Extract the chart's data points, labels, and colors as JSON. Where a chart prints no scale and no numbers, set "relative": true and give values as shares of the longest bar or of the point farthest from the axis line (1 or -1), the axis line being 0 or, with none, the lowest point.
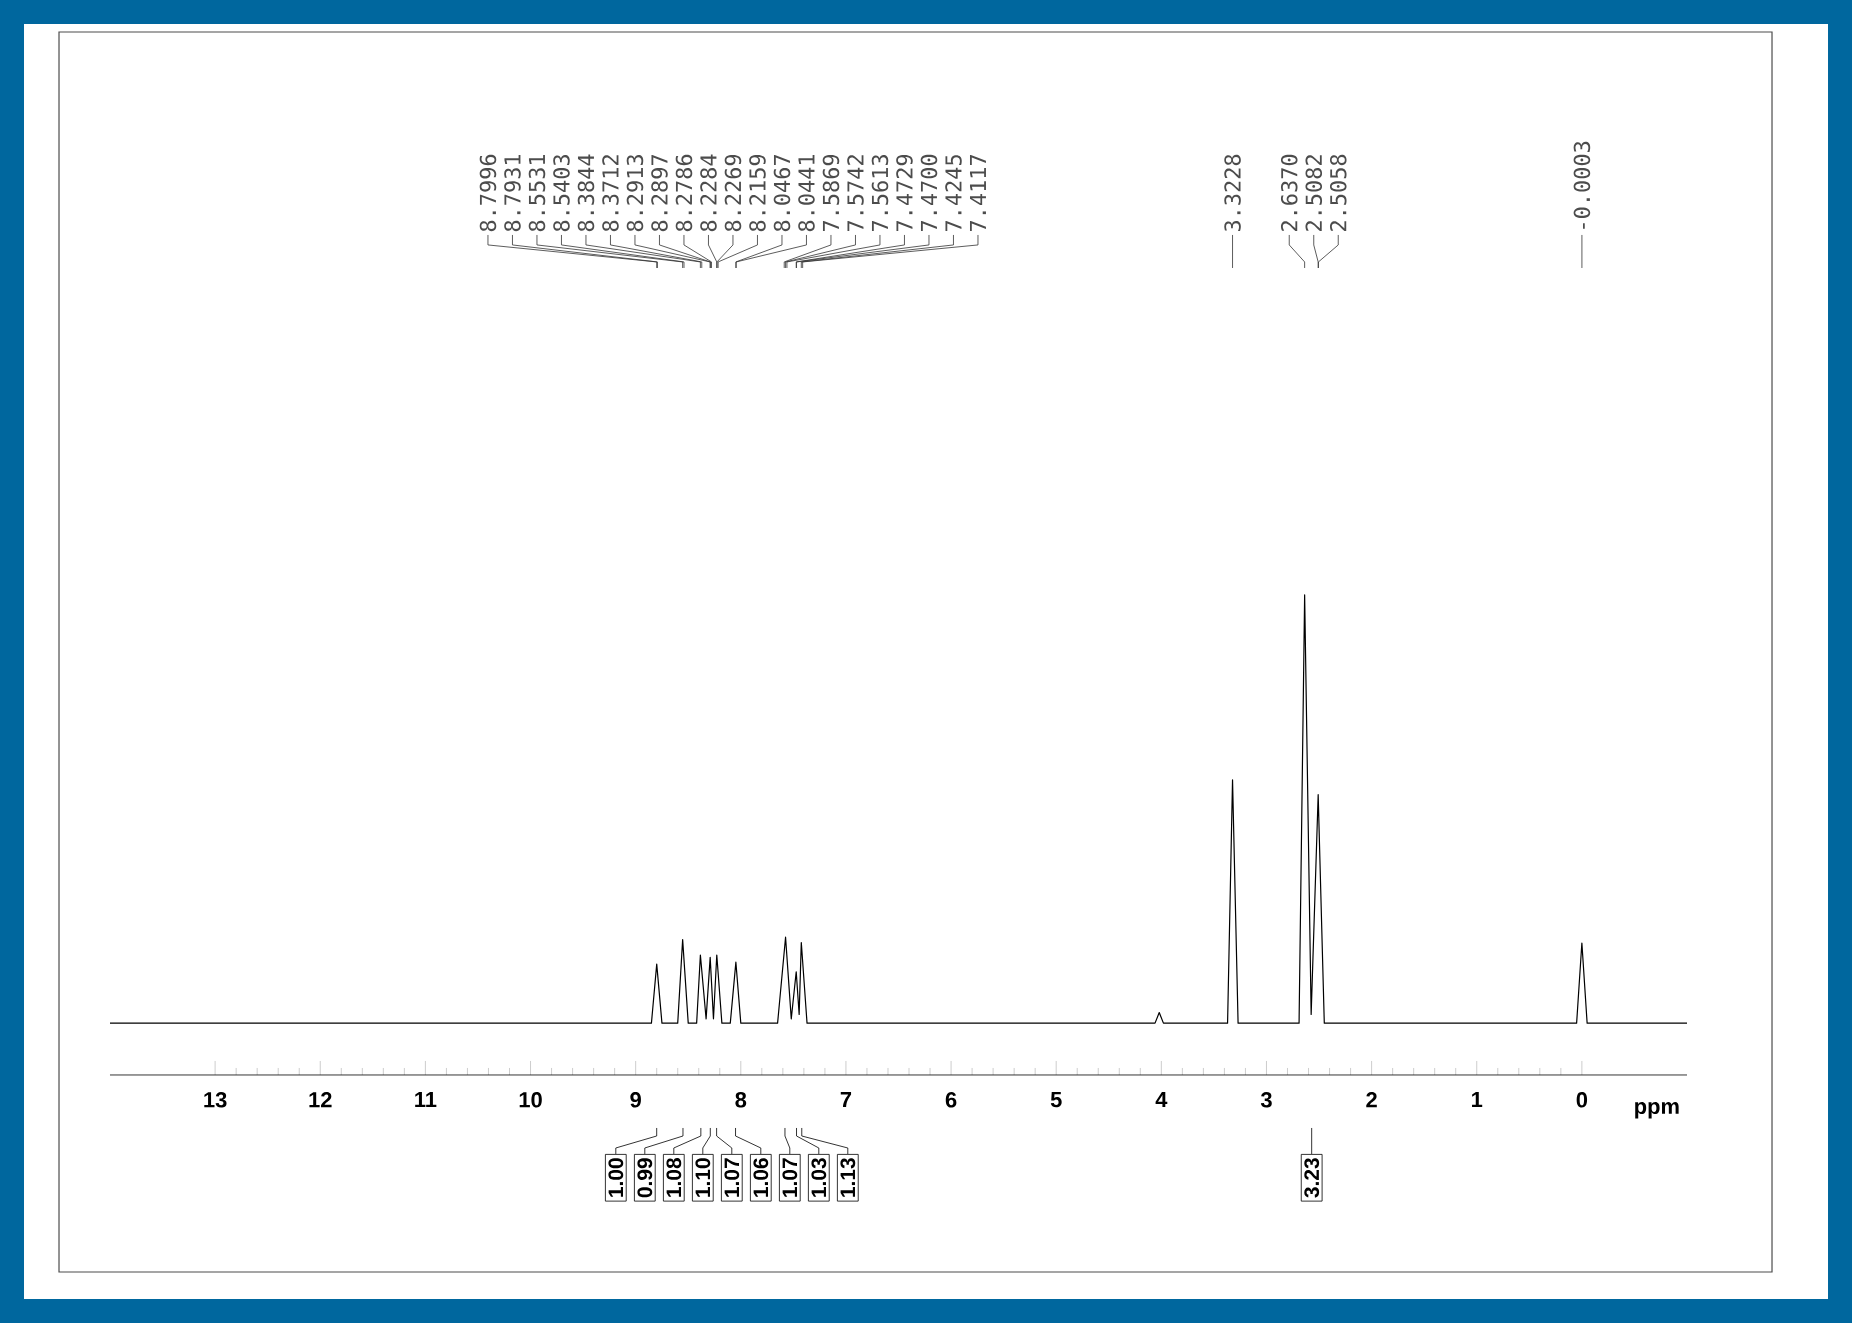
{
  "chart_data": {
    "type": "line",
    "relative": true,
    "xlabel": "ppm",
    "xlim": [
      14,
      -1
    ],
    "xticks": [
      13,
      12,
      11,
      10,
      9,
      8,
      7,
      6,
      5,
      4,
      3,
      2,
      1,
      0
    ],
    "color": "#000000",
    "x": [
      14,
      8.85,
      8.7996,
      8.75,
      8.6,
      8.5531,
      8.5,
      8.42,
      8.3844,
      8.33,
      8.2913,
      8.26,
      8.2284,
      8.18,
      8.1,
      8.0467,
      8.0,
      7.65,
      7.5742,
      7.52,
      7.4729,
      7.445,
      7.4245,
      7.37,
      4.06,
      4.02,
      3.98,
      3.37,
      3.3228,
      3.27,
      2.69,
      2.637,
      2.575,
      2.5082,
      2.45,
      0.05,
      0.0,
      -0.05,
      -1
    ],
    "values": [
      0.108,
      0.108,
      0.231,
      0.108,
      0.108,
      0.282,
      0.108,
      0.108,
      0.25,
      0.117,
      0.245,
      0.117,
      0.25,
      0.108,
      0.108,
      0.235,
      0.108,
      0.108,
      0.287,
      0.117,
      0.215,
      0.126,
      0.276,
      0.108,
      0.108,
      0.13,
      0.108,
      0.108,
      0.615,
      0.108,
      0.108,
      1,
      0.126,
      0.584,
      0.108,
      0.108,
      0.275,
      0.108,
      0.108
    ],
    "annotations": [
      {
        "text": "8.7996",
        "x": 8.7996
      },
      {
        "text": "8.7931",
        "x": 8.7931
      },
      {
        "text": "8.5531",
        "x": 8.5531
      },
      {
        "text": "8.5403",
        "x": 8.5403
      },
      {
        "text": "8.3844",
        "x": 8.3844
      },
      {
        "text": "8.3712",
        "x": 8.3712
      },
      {
        "text": "8.2913",
        "x": 8.2913
      },
      {
        "text": "8.2897",
        "x": 8.2897
      },
      {
        "text": "8.2786",
        "x": 8.2786
      },
      {
        "text": "8.2284",
        "x": 8.2284
      },
      {
        "text": "8.2269",
        "x": 8.2269
      },
      {
        "text": "8.2159",
        "x": 8.2159
      },
      {
        "text": "8.0467",
        "x": 8.0467
      },
      {
        "text": "8.0441",
        "x": 8.0441
      },
      {
        "text": "7.5869",
        "x": 7.5869
      },
      {
        "text": "7.5742",
        "x": 7.5742
      },
      {
        "text": "7.5613",
        "x": 7.5613
      },
      {
        "text": "7.4729",
        "x": 7.4729
      },
      {
        "text": "7.4700",
        "x": 7.47
      },
      {
        "text": "7.4245",
        "x": 7.4245
      },
      {
        "text": "7.4117",
        "x": 7.4117
      },
      {
        "text": "3.3228",
        "x": 3.3228
      },
      {
        "text": "2.6370",
        "x": 2.637
      },
      {
        "text": "2.5082",
        "x": 2.5082
      },
      {
        "text": "2.5058",
        "x": 2.5058
      },
      {
        "text": "-0.0003",
        "x": -0.0003
      },
      {
        "text": "1.00",
        "x": 8.8
      },
      {
        "text": "0.99",
        "x": 8.55
      },
      {
        "text": "1.08",
        "x": 8.38
      },
      {
        "text": "1.10",
        "x": 8.29
      },
      {
        "text": "1.07",
        "x": 8.23
      },
      {
        "text": "1.06",
        "x": 8.05
      },
      {
        "text": "1.07",
        "x": 7.58
      },
      {
        "text": "1.03",
        "x": 7.47
      },
      {
        "text": "1.13",
        "x": 7.42
      },
      {
        "text": "3.23",
        "x": 2.57
      }
    ]
  }
}
